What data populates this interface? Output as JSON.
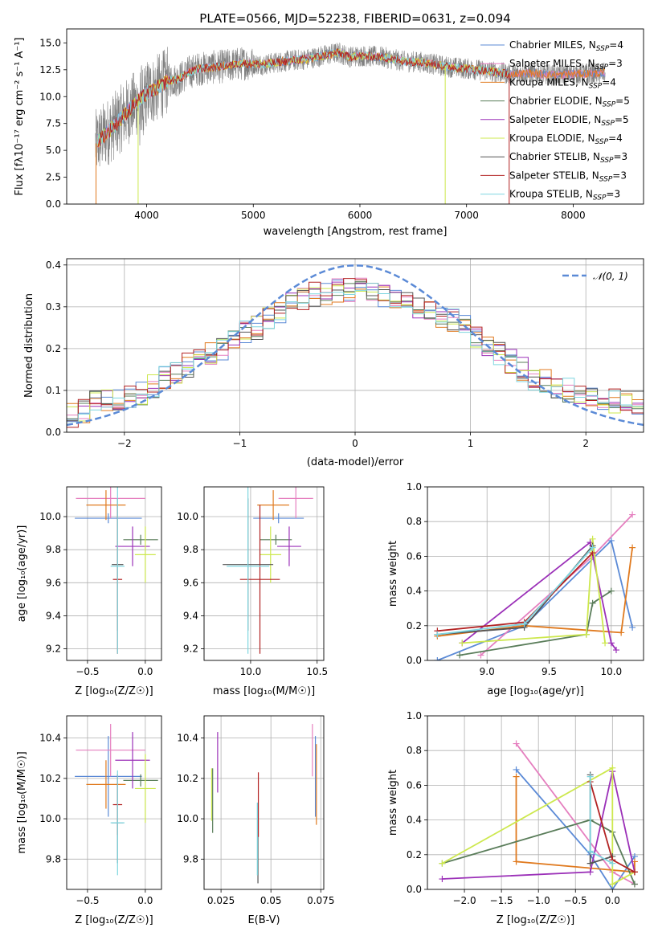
{
  "colors": {
    "chabrier_miles": "#5b8ad6",
    "salpeter_miles": "#e57fbf",
    "kroupa_miles": "#e07a1f",
    "chabrier_elodie": "#5a7d5a",
    "salpeter_elodie": "#9b30b8",
    "kroupa_elodie": "#cde84e",
    "chabrier_stelib": "#555555",
    "salpeter_stelib": "#b22222",
    "kroupa_stelib": "#7fd6e0",
    "gauss": "#5b8ad6"
  },
  "chart_data": [
    {
      "id": "spectrum",
      "type": "line",
      "title": "PLATE=0566, MJD=52238, FIBERID=0631, z=0.094",
      "xlabel": "wavelength [Angstrom, rest frame]",
      "ylabel": "Flux [fλ10⁻¹⁷ erg cm⁻² s⁻¹ A⁻¹]",
      "xlim": [
        3250,
        8660
      ],
      "ylim": [
        0,
        16.3
      ],
      "xticks": [
        4000,
        5000,
        6000,
        7000,
        8000
      ],
      "yticks": [
        0.0,
        2.5,
        5.0,
        7.5,
        10.0,
        12.5,
        15.0
      ],
      "legend_loc": "right",
      "legend": [
        {
          "label": "Chabrier MILES, N",
          "sub": "SSP",
          "n": "=4",
          "color": "chabrier_miles"
        },
        {
          "label": "Salpeter MILES, N",
          "sub": "SSP",
          "n": "=3",
          "color": "salpeter_miles"
        },
        {
          "label": "Kroupa MILES, N",
          "sub": "SSP",
          "n": "=4",
          "color": "kroupa_miles"
        },
        {
          "label": "Chabrier ELODIE, N",
          "sub": "SSP",
          "n": "=5",
          "color": "chabrier_elodie"
        },
        {
          "label": "Salpeter ELODIE, N",
          "sub": "SSP",
          "n": "=5",
          "color": "salpeter_elodie"
        },
        {
          "label": "Kroupa ELODIE, N",
          "sub": "SSP",
          "n": "=4",
          "color": "kroupa_elodie"
        },
        {
          "label": "Chabrier STELIB, N",
          "sub": "SSP",
          "n": "=3",
          "color": "chabrier_stelib"
        },
        {
          "label": "Salpeter STELIB, N",
          "sub": "SSP",
          "n": "=3",
          "color": "salpeter_stelib"
        },
        {
          "label": "Kroupa STELIB, N",
          "sub": "SSP",
          "n": "=3",
          "color": "kroupa_stelib"
        }
      ],
      "continuum": [
        [
          3520,
          5.6
        ],
        [
          3600,
          6.4
        ],
        [
          3700,
          7.3
        ],
        [
          3800,
          8.4
        ],
        [
          3900,
          9.4
        ],
        [
          4000,
          10.3
        ],
        [
          4100,
          10.8
        ],
        [
          4200,
          11.5
        ],
        [
          4300,
          11.6
        ],
        [
          4400,
          12.3
        ],
        [
          4500,
          12.6
        ],
        [
          4700,
          12.8
        ],
        [
          4900,
          13.1
        ],
        [
          5100,
          13.0
        ],
        [
          5300,
          13.3
        ],
        [
          5500,
          13.5
        ],
        [
          5700,
          13.9
        ],
        [
          5800,
          14.1
        ],
        [
          5900,
          13.7
        ],
        [
          6000,
          13.8
        ],
        [
          6200,
          13.7
        ],
        [
          6400,
          13.3
        ],
        [
          6600,
          13.2
        ],
        [
          6800,
          12.8
        ],
        [
          7000,
          12.6
        ],
        [
          7200,
          12.4
        ],
        [
          7400,
          12.1
        ],
        [
          7600,
          12.2
        ],
        [
          7800,
          12.0
        ],
        [
          8000,
          12.1
        ],
        [
          8300,
          12.2
        ]
      ]
    },
    {
      "id": "residuals",
      "type": "histogram",
      "xlabel": "(data-model)/error",
      "ylabel": "Normed distribution",
      "xlim": [
        -2.5,
        2.5
      ],
      "ylim": [
        0,
        0.415
      ],
      "xticks": [
        -2,
        -1,
        0,
        1,
        2
      ],
      "yticks": [
        0.0,
        0.1,
        0.2,
        0.3,
        0.4
      ],
      "legend": {
        "label": "𝒩(0, 1)",
        "color": "gauss"
      },
      "bin_width": 0.1,
      "bin_centers": [
        -2.45,
        -2.35,
        -2.25,
        -2.15,
        -2.05,
        -1.95,
        -1.85,
        -1.75,
        -1.65,
        -1.55,
        -1.45,
        -1.35,
        -1.25,
        -1.15,
        -1.05,
        -0.95,
        -0.85,
        -0.75,
        -0.65,
        -0.55,
        -0.45,
        -0.35,
        -0.25,
        -0.15,
        -0.05,
        0.05,
        0.15,
        0.25,
        0.35,
        0.45,
        0.55,
        0.65,
        0.75,
        0.85,
        0.95,
        1.05,
        1.15,
        1.25,
        1.35,
        1.45,
        1.55,
        1.65,
        1.75,
        1.85,
        1.95,
        2.05,
        2.15,
        2.25,
        2.35,
        2.45
      ],
      "mean_distribution": [
        0.04,
        0.05,
        0.07,
        0.075,
        0.08,
        0.085,
        0.095,
        0.11,
        0.13,
        0.14,
        0.16,
        0.18,
        0.19,
        0.2,
        0.22,
        0.24,
        0.25,
        0.27,
        0.29,
        0.31,
        0.32,
        0.33,
        0.33,
        0.34,
        0.34,
        0.34,
        0.34,
        0.33,
        0.32,
        0.31,
        0.3,
        0.29,
        0.28,
        0.27,
        0.25,
        0.23,
        0.21,
        0.19,
        0.17,
        0.15,
        0.13,
        0.12,
        0.11,
        0.1,
        0.09,
        0.085,
        0.08,
        0.075,
        0.07,
        0.07
      ],
      "gaussian": {
        "mean": 0,
        "sigma": 1
      }
    },
    {
      "id": "age_vs_Z",
      "type": "scatter",
      "xlabel": "Z [log₁₀(Z/Z☉)]",
      "ylabel": "age  [log₁₀(age/yr)]",
      "xlim": [
        -0.68,
        0.14
      ],
      "ylim": [
        9.13,
        10.18
      ],
      "xticks": [
        -0.5,
        0.0
      ],
      "yticks": [
        9.2,
        9.4,
        9.6,
        9.8,
        10.0
      ],
      "points": [
        {
          "color": "chabrier_miles",
          "x": -0.32,
          "xerr": 0.29,
          "y": 9.99,
          "yerr": 0.03
        },
        {
          "color": "salpeter_miles",
          "x": -0.3,
          "xerr": 0.3,
          "y": 10.11,
          "yerr": 0.12
        },
        {
          "color": "kroupa_miles",
          "x": -0.34,
          "xerr": 0.17,
          "y": 10.07,
          "yerr": 0.09
        },
        {
          "color": "chabrier_elodie",
          "x": -0.04,
          "xerr": 0.15,
          "y": 9.86,
          "yerr": 0.03
        },
        {
          "color": "salpeter_elodie",
          "x": -0.11,
          "xerr": 0.15,
          "y": 9.82,
          "yerr": 0.12
        },
        {
          "color": "kroupa_elodie",
          "x": 0.0,
          "xerr": 0.09,
          "y": 9.77,
          "yerr": 0.17
        },
        {
          "color": "chabrier_stelib",
          "x": -0.24,
          "xerr": 0.05,
          "y": 9.71,
          "yerr": 0.4
        },
        {
          "color": "salpeter_stelib",
          "x": -0.24,
          "xerr": 0.04,
          "y": 9.62,
          "yerr": 0.45
        },
        {
          "color": "kroupa_stelib",
          "x": -0.24,
          "xerr": 0.06,
          "y": 9.7,
          "yerr": 0.53
        }
      ]
    },
    {
      "id": "age_vs_mass",
      "type": "scatter",
      "xlabel": "mass [log₁₀(M/M☉)]",
      "ylabel": "",
      "xlim": [
        9.65,
        10.55
      ],
      "ylim": [
        9.13,
        10.18
      ],
      "xticks": [
        10.0,
        10.5
      ],
      "yticks": [
        9.2,
        9.4,
        9.6,
        9.8,
        10.0
      ],
      "points": [
        {
          "color": "chabrier_miles",
          "x": 10.21,
          "xerr": 0.19,
          "y": 9.99,
          "yerr": 0.03
        },
        {
          "color": "salpeter_miles",
          "x": 10.34,
          "xerr": 0.13,
          "y": 10.11,
          "yerr": 0.12
        },
        {
          "color": "kroupa_miles",
          "x": 10.17,
          "xerr": 0.12,
          "y": 10.07,
          "yerr": 0.09
        },
        {
          "color": "chabrier_elodie",
          "x": 10.19,
          "xerr": 0.12,
          "y": 9.86,
          "yerr": 0.03
        },
        {
          "color": "salpeter_elodie",
          "x": 10.29,
          "xerr": 0.09,
          "y": 9.82,
          "yerr": 0.12
        },
        {
          "color": "kroupa_elodie",
          "x": 10.15,
          "xerr": 0.08,
          "y": 9.77,
          "yerr": 0.17
        },
        {
          "color": "chabrier_stelib",
          "x": 9.98,
          "xerr": 0.19,
          "y": 9.71,
          "yerr": 0.4
        },
        {
          "color": "salpeter_stelib",
          "x": 10.07,
          "xerr": 0.15,
          "y": 9.62,
          "yerr": 0.45
        },
        {
          "color": "kroupa_stelib",
          "x": 9.98,
          "xerr": 0.16,
          "y": 9.7,
          "yerr": 0.53
        }
      ]
    },
    {
      "id": "weight_vs_age",
      "type": "line",
      "xlabel": "age  [log₁₀(age/yr)]",
      "ylabel": "mass weight",
      "xlim": [
        8.52,
        10.26
      ],
      "ylim": [
        0,
        1.0
      ],
      "xticks": [
        9.0,
        9.5,
        10.0
      ],
      "yticks": [
        0.0,
        0.2,
        0.4,
        0.6,
        0.8,
        1.0
      ],
      "series": [
        {
          "color": "chabrier_miles",
          "x": [
            8.6,
            9.3,
            10.0,
            10.17
          ],
          "y": [
            0.0,
            0.2,
            0.69,
            0.19
          ]
        },
        {
          "color": "salpeter_miles",
          "x": [
            8.95,
            9.85,
            10.17
          ],
          "y": [
            0.03,
            0.6,
            0.84
          ]
        },
        {
          "color": "kroupa_miles",
          "x": [
            8.6,
            9.3,
            10.08,
            10.17
          ],
          "y": [
            0.14,
            0.2,
            0.16,
            0.65
          ]
        },
        {
          "color": "chabrier_elodie",
          "x": [
            8.78,
            9.8,
            9.85,
            10.0
          ],
          "y": [
            0.03,
            0.15,
            0.33,
            0.4
          ]
        },
        {
          "color": "salpeter_elodie",
          "x": [
            8.8,
            9.83,
            10.0,
            10.04
          ],
          "y": [
            0.1,
            0.68,
            0.1,
            0.06
          ]
        },
        {
          "color": "kroupa_elodie",
          "x": [
            8.8,
            9.8,
            9.85,
            9.95
          ],
          "y": [
            0.1,
            0.15,
            0.7,
            0.1
          ]
        },
        {
          "color": "chabrier_stelib",
          "x": [
            8.6,
            9.3,
            9.85
          ],
          "y": [
            0.15,
            0.19,
            0.66
          ]
        },
        {
          "color": "salpeter_stelib",
          "x": [
            8.6,
            9.3,
            9.85
          ],
          "y": [
            0.17,
            0.22,
            0.62
          ]
        },
        {
          "color": "kroupa_stelib",
          "x": [
            8.6,
            9.3,
            9.85
          ],
          "y": [
            0.15,
            0.21,
            0.65
          ]
        }
      ]
    },
    {
      "id": "mass_vs_Z",
      "type": "scatter",
      "xlabel": "Z [log₁₀(Z/Z☉)]",
      "ylabel": "mass [log₁₀(M/M☉)]",
      "xlim": [
        -0.68,
        0.14
      ],
      "ylim": [
        9.65,
        10.51
      ],
      "xticks": [
        -0.5,
        0.0
      ],
      "yticks": [
        9.8,
        10.0,
        10.2,
        10.4
      ],
      "points": [
        {
          "color": "chabrier_miles",
          "x": -0.32,
          "xerr": 0.29,
          "y": 10.21,
          "yerr": 0.2
        },
        {
          "color": "salpeter_miles",
          "x": -0.3,
          "xerr": 0.3,
          "y": 10.34,
          "yerr": 0.13
        },
        {
          "color": "kroupa_miles",
          "x": -0.34,
          "xerr": 0.17,
          "y": 10.17,
          "yerr": 0.12
        },
        {
          "color": "chabrier_elodie",
          "x": -0.04,
          "xerr": 0.15,
          "y": 10.19,
          "yerr": 0.03
        },
        {
          "color": "salpeter_elodie",
          "x": -0.11,
          "xerr": 0.15,
          "y": 10.29,
          "yerr": 0.14
        },
        {
          "color": "kroupa_elodie",
          "x": 0.0,
          "xerr": 0.09,
          "y": 10.15,
          "yerr": 0.17
        },
        {
          "color": "chabrier_stelib",
          "x": -0.24,
          "xerr": 0.05,
          "y": 9.98,
          "yerr": 0.2
        },
        {
          "color": "salpeter_stelib",
          "x": -0.24,
          "xerr": 0.04,
          "y": 10.07,
          "yerr": 0.15
        },
        {
          "color": "kroupa_stelib",
          "x": -0.24,
          "xerr": 0.06,
          "y": 9.98,
          "yerr": 0.26
        }
      ]
    },
    {
      "id": "mass_vs_ebv",
      "type": "scatter",
      "xlabel": "E(B-V)",
      "ylabel": "",
      "xlim": [
        0.0165,
        0.0765
      ],
      "ylim": [
        9.65,
        10.51
      ],
      "xticks": [
        0.025,
        0.05,
        0.075
      ],
      "yticks": [
        9.8,
        10.0,
        10.2,
        10.4
      ],
      "points": [
        {
          "color": "chabrier_miles",
          "x": 0.0723,
          "y": 10.21,
          "yerr": 0.2
        },
        {
          "color": "salpeter_miles",
          "x": 0.0708,
          "y": 10.34,
          "yerr": 0.13
        },
        {
          "color": "kroupa_miles",
          "x": 0.0728,
          "y": 10.17,
          "yerr": 0.2
        },
        {
          "color": "chabrier_elodie",
          "x": 0.0208,
          "y": 10.09,
          "yerr": 0.16
        },
        {
          "color": "salpeter_elodie",
          "x": 0.0233,
          "y": 10.28,
          "yerr": 0.15
        },
        {
          "color": "kroupa_elodie",
          "x": 0.0203,
          "y": 10.12,
          "yerr": 0.13
        },
        {
          "color": "chabrier_stelib",
          "x": 0.0435,
          "y": 9.88,
          "yerr": 0.2
        },
        {
          "color": "salpeter_stelib",
          "x": 0.0437,
          "y": 10.07,
          "yerr": 0.16
        },
        {
          "color": "kroupa_stelib",
          "x": 0.0432,
          "y": 9.9,
          "yerr": 0.18
        }
      ]
    },
    {
      "id": "weight_vs_Z",
      "type": "line",
      "xlabel": "Z [log₁₀(Z/Z☉)]",
      "ylabel": "mass weight",
      "xlim": [
        -2.5,
        0.42
      ],
      "ylim": [
        0,
        1.0
      ],
      "xticks": [
        -2.0,
        -1.5,
        -1.0,
        -0.5,
        0.0
      ],
      "yticks": [
        0.0,
        0.2,
        0.4,
        0.6,
        0.8,
        1.0
      ],
      "series": [
        {
          "color": "chabrier_miles",
          "x": [
            -1.3,
            -0.3,
            0.0,
            0.3
          ],
          "y": [
            0.69,
            0.2,
            0.0,
            0.19
          ]
        },
        {
          "color": "salpeter_miles",
          "x": [
            -1.3,
            0.0,
            0.3
          ],
          "y": [
            0.84,
            0.1,
            0.03
          ]
        },
        {
          "color": "kroupa_miles",
          "x": [
            -1.3,
            -1.3,
            0.3,
            0.3
          ],
          "y": [
            0.65,
            0.16,
            0.1,
            0.16
          ]
        },
        {
          "color": "chabrier_elodie",
          "x": [
            -2.3,
            -0.3,
            0.0,
            0.3
          ],
          "y": [
            0.15,
            0.4,
            0.33,
            0.03
          ]
        },
        {
          "color": "salpeter_elodie",
          "x": [
            -2.3,
            -0.3,
            0.0,
            0.3
          ],
          "y": [
            0.06,
            0.1,
            0.68,
            0.1
          ]
        },
        {
          "color": "kroupa_elodie",
          "x": [
            -2.3,
            0.0,
            0.0,
            0.3
          ],
          "y": [
            0.15,
            0.7,
            0.03,
            0.1
          ]
        },
        {
          "color": "chabrier_stelib",
          "x": [
            -0.3,
            -0.3,
            0.0
          ],
          "y": [
            0.66,
            0.15,
            0.19
          ]
        },
        {
          "color": "salpeter_stelib",
          "x": [
            -0.3,
            0.0,
            0.3
          ],
          "y": [
            0.62,
            0.17,
            0.1
          ]
        },
        {
          "color": "kroupa_stelib",
          "x": [
            -0.3,
            -0.3,
            0.0
          ],
          "y": [
            0.65,
            0.22,
            0.15
          ]
        }
      ]
    }
  ]
}
